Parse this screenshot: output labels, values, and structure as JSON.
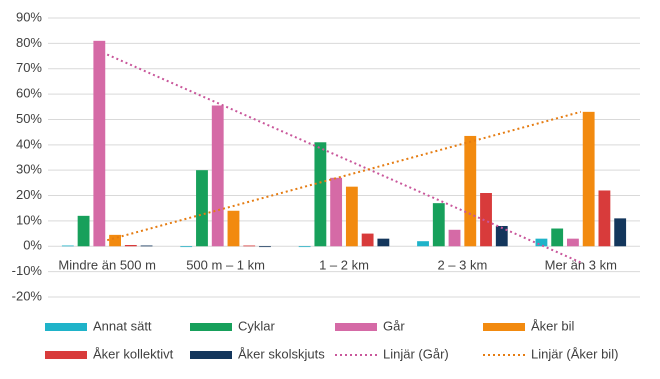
{
  "chart_data": {
    "type": "bar",
    "categories": [
      "Mindre än 500 m",
      "500 m – 1 km",
      "1 – 2 km",
      "2 – 3 km",
      "Mer än 3 km"
    ],
    "series": [
      {
        "name": "Annat sätt",
        "color": "#1fb3c9",
        "values": [
          0.3,
          0,
          0,
          2,
          3
        ]
      },
      {
        "name": "Cyklar",
        "color": "#17a05b",
        "values": [
          12,
          30,
          41,
          17,
          7
        ]
      },
      {
        "name": "Går",
        "color": "#d56aa6",
        "values": [
          81,
          55.5,
          27,
          6.5,
          3
        ]
      },
      {
        "name": "Åker bil",
        "color": "#f28a0f",
        "values": [
          4.5,
          14,
          23.5,
          43.5,
          53
        ]
      },
      {
        "name": "Åker kollektivt",
        "color": "#d83b3b",
        "values": [
          0.5,
          0.3,
          5,
          21,
          22
        ]
      },
      {
        "name": "Åker skolskjuts",
        "color": "#13365c",
        "values": [
          0.3,
          0,
          3,
          8,
          11
        ]
      }
    ],
    "trendlines": [
      {
        "name": "Linjär (Går)",
        "color": "#c9579b",
        "fit_of": 2,
        "style": "dotted"
      },
      {
        "name": "Linjär (Åker bil)",
        "color": "#e57c12",
        "fit_of": 3,
        "style": "dotted"
      }
    ],
    "ylim": [
      -20,
      90
    ],
    "yticks": [
      {
        "value": -20,
        "label": "-20%"
      },
      {
        "value": -10,
        "label": "-10%"
      },
      {
        "value": 0,
        "label": "0%"
      },
      {
        "value": 10,
        "label": "10%"
      },
      {
        "value": 20,
        "label": "20%"
      },
      {
        "value": 30,
        "label": "30%"
      },
      {
        "value": 40,
        "label": "40%"
      },
      {
        "value": 50,
        "label": "50%"
      },
      {
        "value": 60,
        "label": "60%"
      },
      {
        "value": 70,
        "label": "70%"
      },
      {
        "value": 80,
        "label": "80%"
      },
      {
        "value": 90,
        "label": "90%"
      }
    ],
    "grid": true,
    "legend": "bottom"
  }
}
